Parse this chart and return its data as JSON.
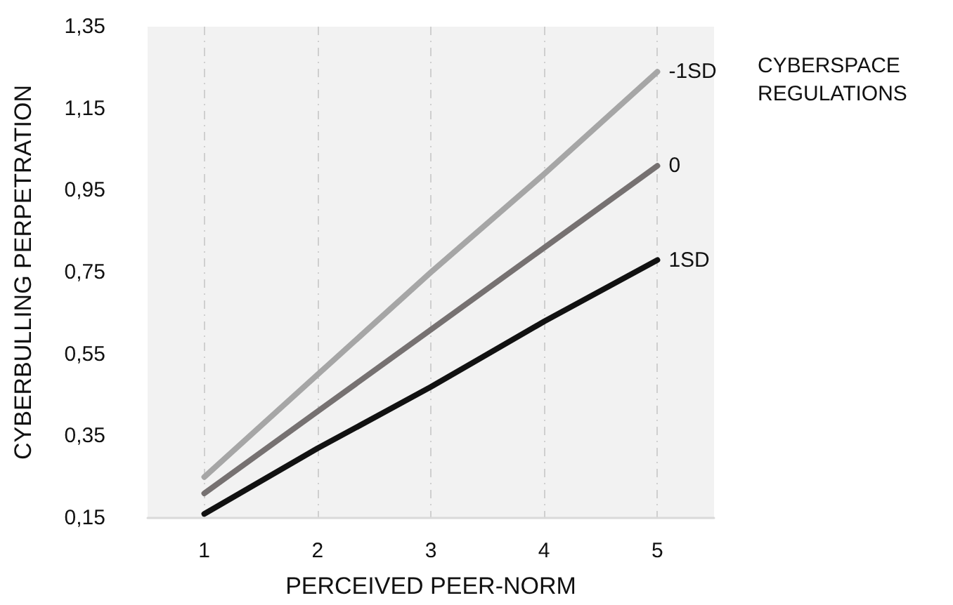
{
  "chart_data": {
    "type": "line",
    "xlabel": "PERCEIVED PEER-NORM",
    "ylabel": "CYBERBULLING PERPETRATION",
    "legend_title": "CYBERSPACE REGULATIONS",
    "x": [
      1,
      2,
      3,
      4,
      5
    ],
    "series": [
      {
        "name": "-1SD",
        "color": "#a6a6a6",
        "values": [
          0.25,
          0.5,
          0.75,
          0.99,
          1.24
        ]
      },
      {
        "name": "0",
        "color": "#767171",
        "values": [
          0.21,
          0.41,
          0.61,
          0.81,
          1.01
        ]
      },
      {
        "name": "1SD",
        "color": "#111111",
        "values": [
          0.16,
          0.32,
          0.47,
          0.63,
          0.78
        ]
      }
    ],
    "xlim": [
      0.5,
      5.5
    ],
    "xticks": [
      1,
      2,
      3,
      4,
      5
    ],
    "ylim": [
      0.15,
      1.35
    ],
    "yticks": [
      {
        "value": 0.15,
        "label": "0,15"
      },
      {
        "value": 0.35,
        "label": "0,35"
      },
      {
        "value": 0.55,
        "label": "0,55"
      },
      {
        "value": 0.75,
        "label": "0,75"
      },
      {
        "value": 0.95,
        "label": "0,95"
      },
      {
        "value": 1.15,
        "label": "1,15"
      },
      {
        "value": 1.35,
        "label": "1,35"
      }
    ],
    "grid": "x",
    "legend": "right",
    "marker": "none",
    "line_style": "solid"
  }
}
